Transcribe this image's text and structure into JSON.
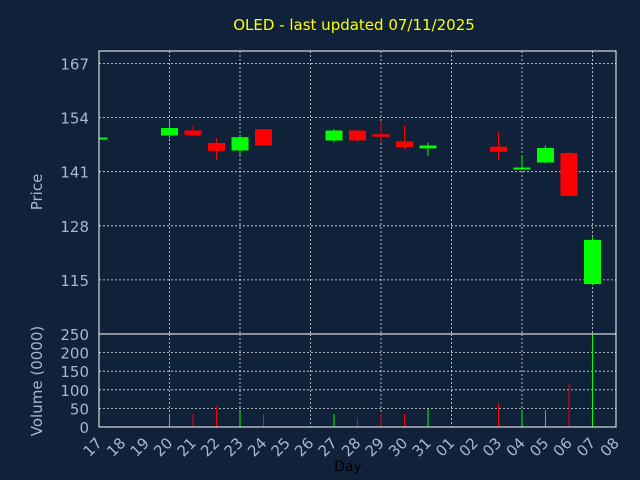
{
  "chart_data": {
    "type": "candlestick",
    "title": "OLED - last updated 07/11/2025",
    "ylabel_price": "Price",
    "ylabel_volume": "Volume (0000)",
    "xlabel": "Day",
    "price_ylim": [
      102,
      170
    ],
    "price_ticks": [
      115,
      128,
      141,
      154,
      167
    ],
    "volume_ylim": [
      0,
      250
    ],
    "volume_ticks": [
      0,
      50,
      100,
      150,
      200,
      250
    ],
    "x_labels": [
      "17",
      "18",
      "19",
      "20",
      "21",
      "22",
      "23",
      "24",
      "25",
      "26",
      "27",
      "28",
      "29",
      "30",
      "31",
      "01",
      "02",
      "03",
      "04",
      "05",
      "06",
      "07",
      "08"
    ],
    "up_color": "#00ff00",
    "down_color": "#ff0000",
    "grid": true,
    "candles": [
      {
        "x": "17",
        "open": 148.9,
        "close": 149.2,
        "high": 149.2,
        "low": 148.9,
        "volume": 3
      },
      {
        "x": "20",
        "open": 149.7,
        "close": 151.5,
        "high": 153.5,
        "low": 149.0,
        "volume": 35
      },
      {
        "x": "21",
        "open": 150.9,
        "close": 149.8,
        "high": 152.0,
        "low": 149.5,
        "volume": 35
      },
      {
        "x": "22",
        "open": 147.9,
        "close": 146.0,
        "high": 149.0,
        "low": 143.8,
        "volume": 55
      },
      {
        "x": "23",
        "open": 146.1,
        "close": 149.3,
        "high": 150.0,
        "low": 144.8,
        "volume": 40
      },
      {
        "x": "24",
        "open": 151.2,
        "close": 147.3,
        "high": 151.2,
        "low": 147.3,
        "volume": 35
      },
      {
        "x": "27",
        "open": 148.5,
        "close": 150.9,
        "high": 151.2,
        "low": 148.0,
        "volume": 35
      },
      {
        "x": "28",
        "open": 150.9,
        "close": 148.5,
        "high": 151.2,
        "low": 148.0,
        "volume": 25
      },
      {
        "x": "29",
        "open": 150.0,
        "close": 149.4,
        "high": 153.0,
        "low": 148.0,
        "volume": 35
      },
      {
        "x": "30",
        "open": 148.3,
        "close": 146.9,
        "high": 152.0,
        "low": 146.5,
        "volume": 35
      },
      {
        "x": "31",
        "open": 146.6,
        "close": 147.3,
        "high": 148.0,
        "low": 144.8,
        "volume": 50
      },
      {
        "x": "03",
        "open": 147.0,
        "close": 145.8,
        "high": 150.5,
        "low": 143.8,
        "volume": 65
      },
      {
        "x": "04",
        "open": 141.6,
        "close": 142.0,
        "high": 145.0,
        "low": 141.4,
        "volume": 45
      },
      {
        "x": "05",
        "open": 143.2,
        "close": 146.7,
        "high": 147.3,
        "low": 143.0,
        "volume": 45
      },
      {
        "x": "06",
        "open": 145.5,
        "close": 135.2,
        "high": 145.8,
        "low": 135.0,
        "volume": 115
      },
      {
        "x": "07",
        "open": 114.0,
        "close": 124.6,
        "high": 125.2,
        "low": 113.8,
        "volume": 250
      }
    ]
  }
}
